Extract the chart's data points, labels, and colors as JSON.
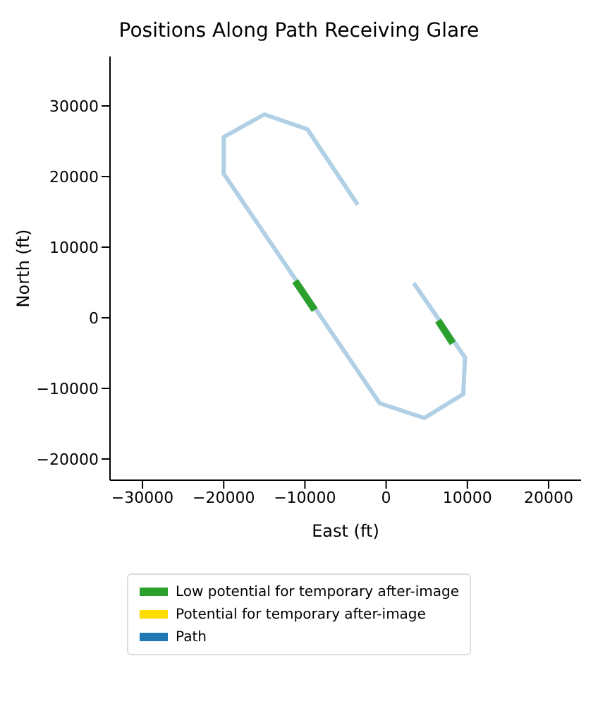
{
  "chart_data": {
    "type": "line",
    "title": "Positions Along Path Receiving Glare",
    "xlabel": "East (ft)",
    "ylabel": "North (ft)",
    "xlim": [
      -34000,
      24000
    ],
    "ylim": [
      -23000,
      37000
    ],
    "xticks": [
      {
        "value": -30000,
        "label": "−30000"
      },
      {
        "value": -20000,
        "label": "−20000"
      },
      {
        "value": -10000,
        "label": "−10000"
      },
      0,
      10000,
      20000
    ],
    "yticks": [
      {
        "value": -20000,
        "label": "−20000"
      },
      {
        "value": -10000,
        "label": "−10000"
      },
      0,
      10000,
      20000,
      30000
    ],
    "legend": "bottom",
    "marker": "none",
    "line_style": "solid",
    "series": [
      {
        "name": "Low potential for temporary after-image",
        "color": "#2ca02c",
        "x": [
          -11200,
          -8800,
          null,
          6400,
          8200
        ],
        "values": [
          5200,
          1100,
          null,
          -400,
          -3600
        ]
      },
      {
        "name": "Potential for temporary after-image",
        "color": "#ffdd00"
      },
      {
        "name": "Path",
        "color": "#1f77b4",
        "x": [
          -3500,
          -9700,
          -15000,
          -20000,
          -20000,
          -800,
          4700,
          9500,
          9700,
          3400
        ],
        "values": [
          16000,
          26700,
          28800,
          25600,
          20400,
          -12100,
          -14200,
          -10800,
          -5600,
          4900
        ]
      }
    ]
  }
}
